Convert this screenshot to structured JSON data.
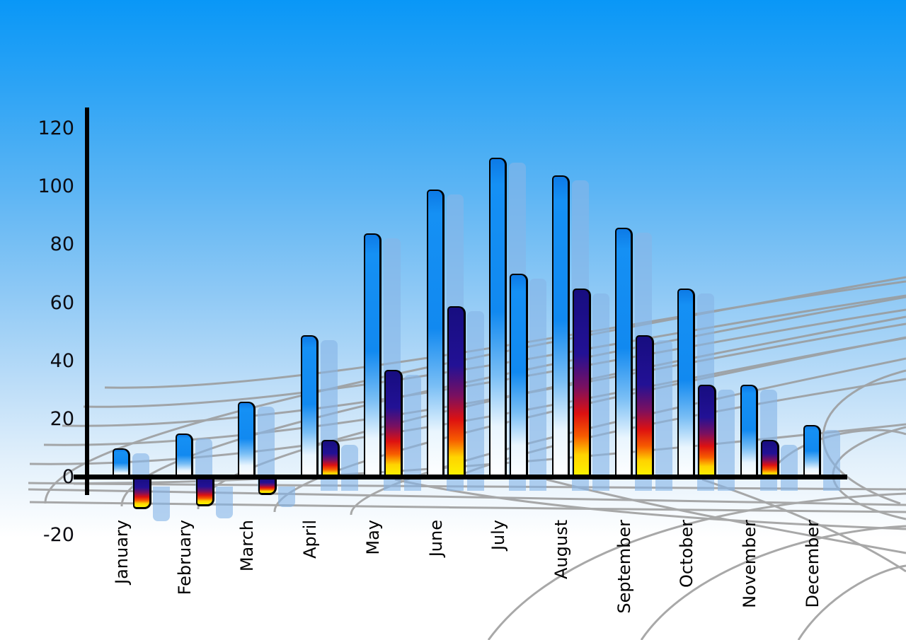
{
  "chart_data": {
    "type": "bar",
    "title": "",
    "categories": [
      "January",
      "February",
      "March",
      "April",
      "May",
      "June",
      "July",
      "August",
      "September",
      "October",
      "November",
      "December"
    ],
    "series": [
      {
        "name": "primary-blue-bars",
        "values": [
          10,
          15,
          26,
          49,
          84,
          99,
          110,
          104,
          86,
          65,
          32,
          18
        ]
      },
      {
        "name": "secondary-heat-bars",
        "values": [
          -11,
          -10,
          -6,
          13,
          37,
          59,
          70,
          65,
          49,
          32,
          13,
          null
        ],
        "styles": [
          "heat",
          "heat",
          "heat",
          "heat",
          "heat",
          "heat",
          "blue",
          "heat",
          "heat",
          "heat",
          "heat",
          null
        ]
      }
    ],
    "y_axis": {
      "tick_labels": [
        "120",
        "100",
        "80",
        "60",
        "40",
        "20",
        "0",
        "-20"
      ],
      "tick_values": [
        120,
        100,
        80,
        60,
        40,
        20,
        0,
        -20
      ],
      "ylim": [
        -20,
        120
      ]
    },
    "legend": "none",
    "grid": "decorative perspective net behind bars",
    "colors": {
      "sky_top": "#0997f7",
      "sky_bottom": "#ffffff",
      "bar_blue": "#1189f0",
      "heat_navy": "#221195",
      "heat_red": "#dd1111",
      "heat_yellow": "#fbf600",
      "echo_bar": "rgba(134,181,230,0.62)",
      "axis": "#000000",
      "grid_line": "#9a9a9a",
      "label_text": "#0c0c12"
    }
  }
}
